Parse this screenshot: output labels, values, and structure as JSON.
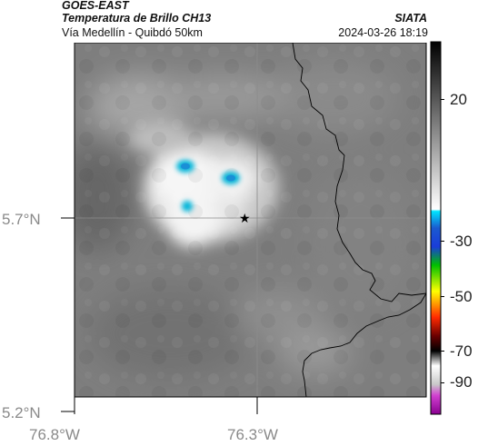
{
  "header": {
    "satellite": "GOES-EAST",
    "product": "Temperatura de Brillo CH13",
    "region": "Vía Medellín - Quibdó 50km",
    "agency": "SIATA",
    "datetime": "2024-03-26 18:19"
  },
  "map": {
    "lat_ticks": [
      "5.7°N",
      "5.2°N"
    ],
    "lon_ticks": [
      "76.8°W",
      "76.3°W"
    ],
    "marker_icon": "star-icon",
    "gridline_color": "#8c8c8c",
    "border_color": "#000000"
  },
  "colorbar": {
    "labels": [
      "20",
      "-30",
      "-50",
      "-70",
      "-90"
    ],
    "scale_colors": [
      "#000000",
      "#ffffff",
      "#00e5ff",
      "#1a3cd9",
      "#00c000",
      "#ffff00",
      "#ff2a00",
      "#6a0000",
      "#ffffff",
      "#b000b0"
    ]
  },
  "clouds": {
    "background_color": "#7a7a7a",
    "bright_core_color": "#ffffff",
    "cold_top_color": "#00b8d8"
  }
}
